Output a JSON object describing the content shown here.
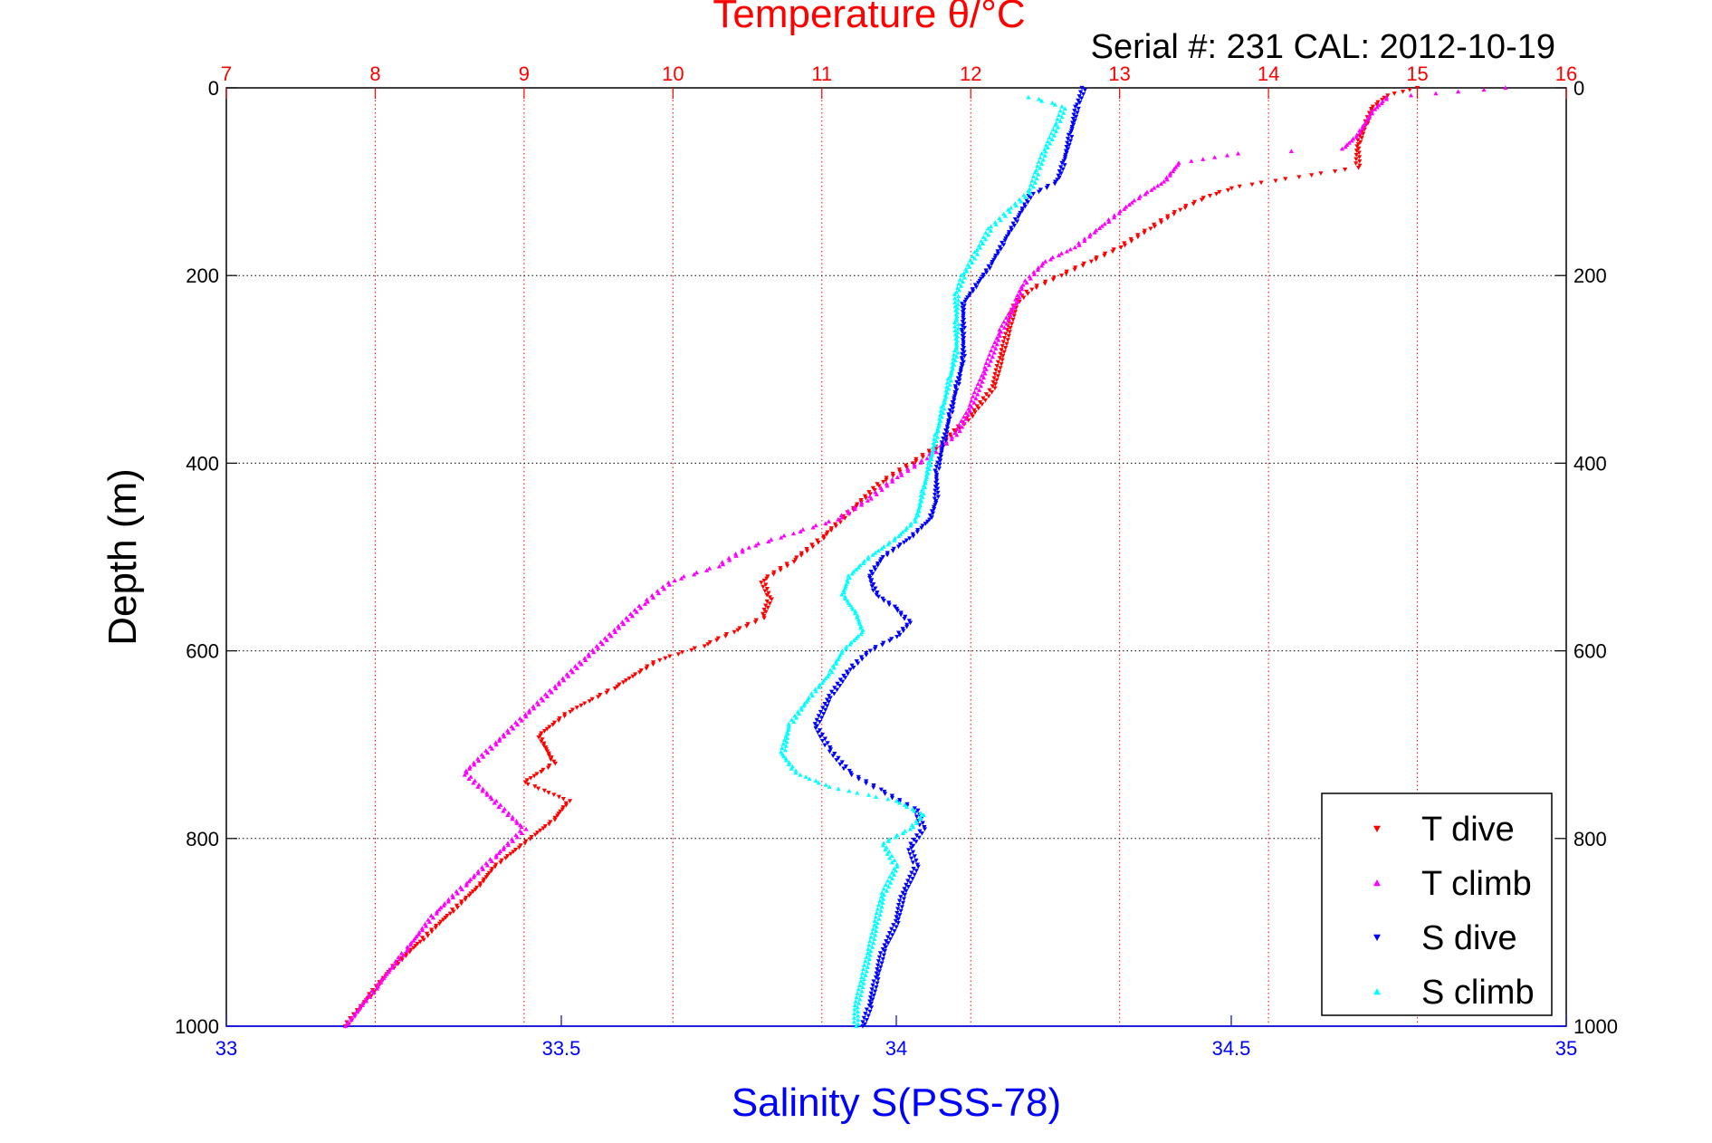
{
  "chart_data": {
    "type": "scatter",
    "title": "Temperature θ/°C",
    "subtitle": "Serial #: 231  CAL: 2012-10-19",
    "ylabel": "Depth (m)",
    "xlabel": "Salinity S(PSS-78)",
    "x_top": {
      "range": [
        7,
        16
      ],
      "ticks": [
        "7",
        "8",
        "9",
        "10",
        "11",
        "12",
        "13",
        "14",
        "15",
        "16"
      ]
    },
    "x_bottom": {
      "range": [
        33,
        35
      ],
      "ticks": [
        "33",
        "33.5",
        "34",
        "34.5",
        "35"
      ]
    },
    "y": {
      "range": [
        0,
        1000
      ],
      "reversed": true,
      "ticks": [
        "0",
        "200",
        "400",
        "600",
        "800",
        "1000"
      ]
    },
    "grid": true,
    "legend": {
      "position": "bottom-right"
    },
    "colors": {
      "temperature_axis": "#ff0000",
      "salinity_axis": "#0000ff"
    },
    "series": [
      {
        "name": "T dive",
        "axis": "temperature",
        "marker": "triangle-down",
        "color": "#ff0000",
        "points": [
          [
            15.0,
            0
          ],
          [
            14.8,
            8
          ],
          [
            14.7,
            20
          ],
          [
            14.65,
            40
          ],
          [
            14.6,
            60
          ],
          [
            14.6,
            85
          ],
          [
            14.2,
            95
          ],
          [
            13.8,
            105
          ],
          [
            13.6,
            115
          ],
          [
            13.4,
            130
          ],
          [
            13.2,
            150
          ],
          [
            13.0,
            170
          ],
          [
            12.8,
            185
          ],
          [
            12.6,
            200
          ],
          [
            12.4,
            215
          ],
          [
            12.3,
            230
          ],
          [
            12.25,
            260
          ],
          [
            12.2,
            290
          ],
          [
            12.15,
            320
          ],
          [
            12.0,
            350
          ],
          [
            11.8,
            380
          ],
          [
            11.6,
            400
          ],
          [
            11.4,
            420
          ],
          [
            11.2,
            450
          ],
          [
            11.0,
            480
          ],
          [
            10.8,
            505
          ],
          [
            10.6,
            525
          ],
          [
            10.65,
            545
          ],
          [
            10.6,
            565
          ],
          [
            10.4,
            580
          ],
          [
            10.2,
            595
          ],
          [
            9.9,
            610
          ],
          [
            9.6,
            640
          ],
          [
            9.3,
            665
          ],
          [
            9.1,
            690
          ],
          [
            9.2,
            720
          ],
          [
            9.0,
            740
          ],
          [
            9.3,
            760
          ],
          [
            9.2,
            780
          ],
          [
            9.0,
            805
          ],
          [
            8.8,
            830
          ],
          [
            8.7,
            850
          ],
          [
            8.5,
            880
          ],
          [
            8.3,
            910
          ],
          [
            8.1,
            940
          ],
          [
            7.95,
            970
          ],
          [
            7.8,
            1000
          ]
        ]
      },
      {
        "name": "T climb",
        "axis": "temperature",
        "marker": "triangle-up",
        "color": "#ff00ff",
        "points": [
          [
            15.6,
            0
          ],
          [
            14.8,
            10
          ],
          [
            14.7,
            25
          ],
          [
            14.6,
            50
          ],
          [
            14.5,
            65
          ],
          [
            13.8,
            70
          ],
          [
            13.4,
            80
          ],
          [
            13.3,
            100
          ],
          [
            13.1,
            120
          ],
          [
            12.9,
            145
          ],
          [
            12.7,
            170
          ],
          [
            12.5,
            185
          ],
          [
            12.35,
            210
          ],
          [
            12.3,
            230
          ],
          [
            12.2,
            260
          ],
          [
            12.1,
            300
          ],
          [
            12.0,
            340
          ],
          [
            11.9,
            370
          ],
          [
            11.7,
            395
          ],
          [
            11.5,
            415
          ],
          [
            11.3,
            440
          ],
          [
            11.1,
            460
          ],
          [
            10.8,
            475
          ],
          [
            10.5,
            490
          ],
          [
            10.3,
            510
          ],
          [
            10.0,
            525
          ],
          [
            9.8,
            550
          ],
          [
            9.6,
            580
          ],
          [
            9.4,
            610
          ],
          [
            9.2,
            640
          ],
          [
            9.0,
            670
          ],
          [
            8.8,
            700
          ],
          [
            8.6,
            730
          ],
          [
            8.8,
            760
          ],
          [
            9.0,
            790
          ],
          [
            8.8,
            820
          ],
          [
            8.6,
            850
          ],
          [
            8.4,
            880
          ],
          [
            8.2,
            920
          ],
          [
            8.0,
            960
          ],
          [
            7.8,
            1000
          ]
        ]
      },
      {
        "name": "S dive",
        "axis": "salinity",
        "marker": "triangle-down",
        "color": "#0000ff",
        "points": [
          [
            34.28,
            0
          ],
          [
            34.27,
            20
          ],
          [
            34.26,
            50
          ],
          [
            34.25,
            80
          ],
          [
            34.24,
            100
          ],
          [
            34.2,
            115
          ],
          [
            34.18,
            140
          ],
          [
            34.16,
            165
          ],
          [
            34.14,
            190
          ],
          [
            34.12,
            210
          ],
          [
            34.1,
            230
          ],
          [
            34.1,
            260
          ],
          [
            34.1,
            290
          ],
          [
            34.09,
            320
          ],
          [
            34.08,
            350
          ],
          [
            34.07,
            380
          ],
          [
            34.06,
            410
          ],
          [
            34.06,
            440
          ],
          [
            34.05,
            460
          ],
          [
            34.02,
            480
          ],
          [
            33.98,
            500
          ],
          [
            33.96,
            520
          ],
          [
            33.97,
            540
          ],
          [
            34.0,
            555
          ],
          [
            34.02,
            570
          ],
          [
            34.0,
            585
          ],
          [
            33.96,
            600
          ],
          [
            33.93,
            620
          ],
          [
            33.9,
            650
          ],
          [
            33.88,
            680
          ],
          [
            33.9,
            705
          ],
          [
            33.93,
            730
          ],
          [
            33.98,
            750
          ],
          [
            34.03,
            770
          ],
          [
            34.04,
            790
          ],
          [
            34.02,
            810
          ],
          [
            34.03,
            830
          ],
          [
            34.01,
            860
          ],
          [
            34.0,
            890
          ],
          [
            33.98,
            920
          ],
          [
            33.97,
            950
          ],
          [
            33.96,
            980
          ],
          [
            33.95,
            1000
          ]
        ]
      },
      {
        "name": "S climb",
        "axis": "salinity",
        "marker": "triangle-up",
        "color": "#00ffff",
        "points": [
          [
            34.2,
            10
          ],
          [
            34.25,
            20
          ],
          [
            34.24,
            40
          ],
          [
            34.22,
            70
          ],
          [
            34.21,
            90
          ],
          [
            34.2,
            110
          ],
          [
            34.17,
            130
          ],
          [
            34.14,
            150
          ],
          [
            34.12,
            175
          ],
          [
            34.1,
            200
          ],
          [
            34.09,
            220
          ],
          [
            34.09,
            250
          ],
          [
            34.09,
            280
          ],
          [
            34.08,
            310
          ],
          [
            34.07,
            340
          ],
          [
            34.06,
            370
          ],
          [
            34.05,
            400
          ],
          [
            34.04,
            430
          ],
          [
            34.03,
            460
          ],
          [
            34.0,
            480
          ],
          [
            33.96,
            500
          ],
          [
            33.93,
            520
          ],
          [
            33.92,
            540
          ],
          [
            33.94,
            560
          ],
          [
            33.95,
            580
          ],
          [
            33.92,
            600
          ],
          [
            33.9,
            625
          ],
          [
            33.87,
            650
          ],
          [
            33.84,
            680
          ],
          [
            33.83,
            710
          ],
          [
            33.85,
            730
          ],
          [
            33.9,
            745
          ],
          [
            34.0,
            760
          ],
          [
            34.04,
            775
          ],
          [
            34.02,
            790
          ],
          [
            33.98,
            805
          ],
          [
            34.0,
            830
          ],
          [
            33.98,
            860
          ],
          [
            33.97,
            890
          ],
          [
            33.96,
            920
          ],
          [
            33.95,
            950
          ],
          [
            33.94,
            980
          ],
          [
            33.94,
            1000
          ]
        ]
      }
    ]
  }
}
